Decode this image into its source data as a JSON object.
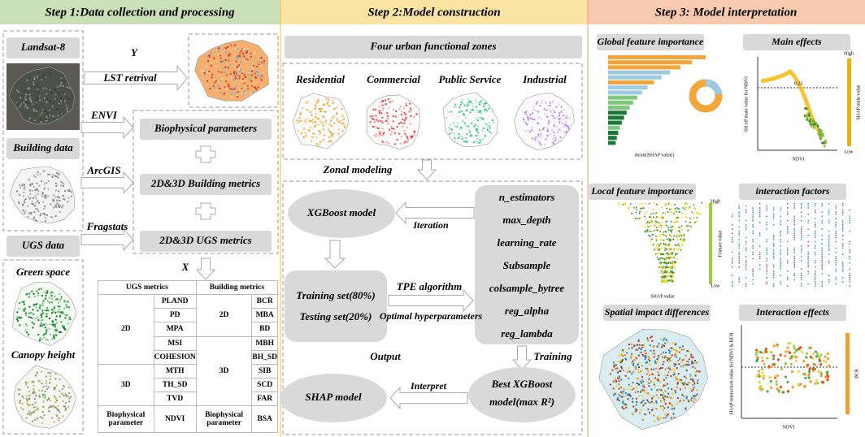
{
  "step1": {
    "title": "Step 1:Data collection and processing",
    "sources": {
      "landsat": "Landsat-8",
      "building": "Building data",
      "ugs": "UGS data",
      "green_space": "Green space",
      "canopy_height": "Canopy height"
    },
    "y_label": "Y",
    "lst": "LST retrival",
    "tools": {
      "envi": "ENVI",
      "arcgis": "ArcGIS",
      "fragstats": "Fragstats"
    },
    "metrics": [
      "Biophysical parameters",
      "2D&3D Building metrics",
      "2D&3D UGS metrics"
    ],
    "x_label": "X",
    "table": {
      "header": [
        "UGS metrics",
        "Building metrics"
      ],
      "groups": {
        "ugs_2d": "2D",
        "ugs_3d": "3D",
        "bld_2d": "2D",
        "bld_3d": "3D",
        "bio_left": "Biophysical parameter",
        "bio_right": "Biophysical parameter"
      },
      "ugs": [
        "PLAND",
        "PD",
        "MPA",
        "MSI",
        "COHESION",
        "MTH",
        "TH_SD",
        "TVD",
        "NDVI"
      ],
      "building": [
        "BCR",
        "MBA",
        "BD",
        "MBH",
        "BH_SD",
        "SIB",
        "SCD",
        "FAR",
        "BSA"
      ]
    }
  },
  "step2": {
    "title": "Step 2:Model construction",
    "zones_title": "Four urban functional zones",
    "zones": [
      "Residential",
      "Commercial",
      "Public Service",
      "Industrial"
    ],
    "zonal": "Zonal modeling",
    "xgboost": "XGBoost model",
    "iteration": "Iteration",
    "params": [
      "n_estimators",
      "max_depth",
      "learning_rate",
      "Subsample",
      "colsample_bytree",
      "reg_alpha",
      "reg_lambda"
    ],
    "training": "Training set(80%)",
    "testing": "Testing set(20%)",
    "tpe": "TPE algorithm",
    "optimal": "Optimal hyperparameters",
    "output": "Output",
    "train": "Training",
    "best": [
      "Best XGBoost",
      "model(max R²)"
    ],
    "interpret": "Interpret",
    "shap": "SHAP model"
  },
  "step3": {
    "title": "Step 3: Model interpretation",
    "panels": [
      "Global feature importance",
      "Main effects",
      "Local feature importance",
      "interaction factors",
      "Spatial impact differences",
      "Interaction effects"
    ],
    "labels": {
      "mean_shap": "mean(|SHAP value|)",
      "ndvi": "NDVI",
      "main_y": "SHAP main value for NDVI",
      "main_cbar": "SHAP main value",
      "peak": "0.23",
      "high": "High",
      "low": "Low",
      "shap_value": "SHAP value",
      "feature_value": "Feature value",
      "int_y": "SHAP interaction value for NDVI & BCR",
      "bcr": "BCR"
    }
  }
}
